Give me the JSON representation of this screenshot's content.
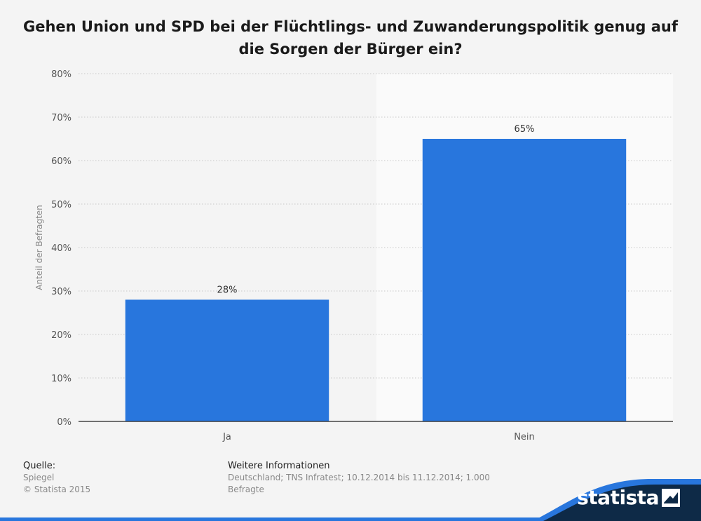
{
  "title_lines": [
    "Gehen Union und SPD bei der Flüchtlings- und Zuwanderungspolitik genug auf",
    "die Sorgen der Bürger ein?"
  ],
  "chart_data": {
    "type": "bar",
    "title": "Gehen Union und SPD bei der Flüchtlings- und Zuwanderungspolitik genug auf die Sorgen der Bürger ein?",
    "categories": [
      "Ja",
      "Nein"
    ],
    "values": [
      28,
      65
    ],
    "data_labels": [
      "28%",
      "65%"
    ],
    "xlabel": "",
    "ylabel": "Anteil der Befragten",
    "ylim": [
      0,
      80
    ],
    "yticks": [
      "0%",
      "10%",
      "20%",
      "30%",
      "40%",
      "50%",
      "60%",
      "70%",
      "80%"
    ],
    "grid": true,
    "bar_color": "#2876dd"
  },
  "footer": {
    "source_heading": "Quelle:",
    "source_lines": [
      "Spiegel",
      "© Statista 2015"
    ],
    "info_heading": "Weitere Informationen",
    "info_lines": [
      "Deutschland; TNS Infratest; 10.12.2014 bis 11.12.2014; 1.000",
      "Befragte"
    ]
  },
  "brand": {
    "name": "statista",
    "color_dark": "#0e2a47",
    "color_accent": "#2876dd"
  }
}
